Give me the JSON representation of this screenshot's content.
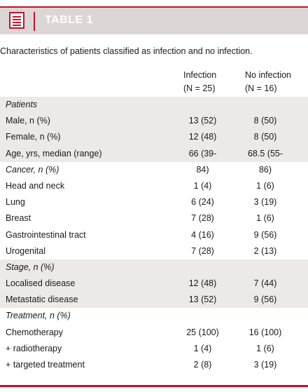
{
  "header": {
    "title": "TABLE 1"
  },
  "caption": "Characteristics of patients classified as infection and no infection.",
  "columns": [
    {
      "name": "Infection",
      "n": "(N = 25)"
    },
    {
      "name": "No infection",
      "n": "(N = 16)"
    }
  ],
  "rows": [
    {
      "label": "Patients",
      "section": true,
      "shade": true,
      "v1": "",
      "v2": ""
    },
    {
      "label": "Male, n (%)",
      "section": false,
      "shade": true,
      "v1": "13 (52)",
      "v2": "8 (50)"
    },
    {
      "label": "Female, n (%)",
      "section": false,
      "shade": true,
      "v1": "12 (48)",
      "v2": "8 (50)"
    },
    {
      "label": "Age, yrs, median (range)",
      "section": false,
      "shade": true,
      "v1": "66 (39-84)",
      "v2": "68.5 (55-86)"
    },
    {
      "label": "Cancer, n (%)",
      "section": true,
      "shade": false,
      "v1": "",
      "v2": ""
    },
    {
      "label": "Head and neck",
      "section": false,
      "shade": false,
      "v1": "1 (4)",
      "v2": "1 (6)"
    },
    {
      "label": "Lung",
      "section": false,
      "shade": false,
      "v1": "6 (24)",
      "v2": "3 (19)"
    },
    {
      "label": "Breast",
      "section": false,
      "shade": false,
      "v1": "7 (28)",
      "v2": "1 (6)"
    },
    {
      "label": "Gastrointestinal tract",
      "section": false,
      "shade": false,
      "v1": "4 (16)",
      "v2": "9 (56)"
    },
    {
      "label": "Urogenital",
      "section": false,
      "shade": false,
      "v1": "7 (28)",
      "v2": "2 (13)"
    },
    {
      "label": "Stage, n (%)",
      "section": true,
      "shade": true,
      "v1": "",
      "v2": ""
    },
    {
      "label": "Localised disease",
      "section": false,
      "shade": true,
      "v1": "12 (48)",
      "v2": "7 (44)"
    },
    {
      "label": "Metastatic disease",
      "section": false,
      "shade": true,
      "v1": "13 (52)",
      "v2": "9 (56)"
    },
    {
      "label": "Treatment, n (%)",
      "section": true,
      "shade": false,
      "v1": "",
      "v2": ""
    },
    {
      "label": "Chemotherapy",
      "section": false,
      "shade": false,
      "v1": "25 (100)",
      "v2": "16 (100)"
    },
    {
      "label": "+ radiotherapy",
      "section": false,
      "shade": false,
      "v1": "1 (4)",
      "v2": "1 (6)"
    },
    {
      "label": "+ targeted treatment",
      "section": false,
      "shade": false,
      "v1": "2 (8)",
      "v2": "3 (19)"
    }
  ],
  "colors": {
    "accent": "#c8102e",
    "header_bg": "#dcd7d4",
    "shade_bg": "#ece9e6"
  },
  "icons": {
    "header": "table-icon"
  }
}
